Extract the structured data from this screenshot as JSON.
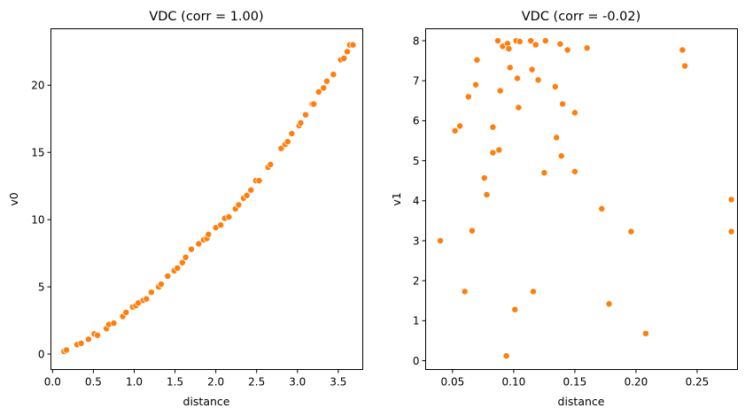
{
  "chart_data": [
    {
      "type": "scatter",
      "title": "VDC (corr = 1.00)",
      "xlabel": "distance",
      "ylabel": "v0",
      "xlim": [
        -0.02,
        3.8
      ],
      "ylim": [
        -1.15,
        24.2
      ],
      "xticks": [
        0.0,
        0.5,
        1.0,
        1.5,
        2.0,
        2.5,
        3.0,
        3.5
      ],
      "xtick_labels": [
        "0.0",
        "0.5",
        "1.0",
        "1.5",
        "2.0",
        "2.5",
        "3.0",
        "3.5"
      ],
      "yticks": [
        0,
        5,
        10,
        15,
        20
      ],
      "ytick_labels": [
        "0",
        "5",
        "10",
        "15",
        "20"
      ],
      "grid": false,
      "marker_color": "#ff7f0e",
      "x": [
        0.14,
        0.17,
        0.3,
        0.35,
        0.44,
        0.51,
        0.55,
        0.66,
        0.69,
        0.75,
        0.86,
        0.9,
        0.98,
        1.02,
        1.05,
        1.11,
        1.15,
        1.21,
        1.3,
        1.33,
        1.41,
        1.49,
        1.53,
        1.59,
        1.63,
        1.7,
        1.79,
        1.85,
        1.89,
        1.91,
        2.0,
        2.06,
        2.11,
        2.16,
        2.24,
        2.28,
        2.34,
        2.38,
        2.43,
        2.49,
        2.53,
        2.64,
        2.67,
        2.8,
        2.85,
        2.88,
        2.93,
        3.02,
        3.04,
        3.1,
        3.18,
        3.2,
        3.26,
        3.32,
        3.36,
        3.44,
        3.53,
        3.57,
        3.61,
        3.64,
        3.68
      ],
      "y": [
        0.2,
        0.3,
        0.7,
        0.8,
        1.1,
        1.5,
        1.4,
        1.9,
        2.2,
        2.3,
        2.8,
        3.1,
        3.5,
        3.6,
        3.8,
        4.0,
        4.1,
        4.6,
        5.0,
        5.2,
        5.8,
        6.2,
        6.4,
        6.8,
        7.2,
        7.8,
        8.2,
        8.5,
        8.6,
        8.9,
        9.4,
        9.6,
        10.1,
        10.2,
        10.8,
        11.1,
        11.6,
        11.8,
        12.2,
        12.9,
        12.9,
        13.9,
        14.1,
        15.3,
        15.6,
        15.8,
        16.4,
        17.0,
        17.2,
        17.8,
        18.6,
        18.6,
        19.5,
        19.8,
        20.3,
        20.8,
        21.9,
        22.0,
        22.5,
        23.0,
        23.0
      ]
    },
    {
      "type": "scatter",
      "title": "VDC (corr = -0.02)",
      "xlabel": "distance",
      "ylabel": "v1",
      "xlim": [
        0.028,
        0.283
      ],
      "ylim": [
        -0.22,
        8.3
      ],
      "xticks": [
        0.05,
        0.1,
        0.15,
        0.2,
        0.25
      ],
      "xtick_labels": [
        "0.05",
        "0.10",
        "0.15",
        "0.20",
        "0.25"
      ],
      "yticks": [
        0,
        1,
        2,
        3,
        4,
        5,
        6,
        7,
        8
      ],
      "ytick_labels": [
        "0",
        "1",
        "2",
        "3",
        "4",
        "5",
        "6",
        "7",
        "8"
      ],
      "grid": false,
      "marker_color": "#ff7f0e",
      "x": [
        0.04,
        0.052,
        0.056,
        0.06,
        0.063,
        0.066,
        0.069,
        0.07,
        0.076,
        0.078,
        0.083,
        0.083,
        0.087,
        0.088,
        0.089,
        0.091,
        0.094,
        0.095,
        0.096,
        0.097,
        0.101,
        0.102,
        0.103,
        0.104,
        0.105,
        0.114,
        0.115,
        0.116,
        0.118,
        0.12,
        0.125,
        0.126,
        0.134,
        0.135,
        0.138,
        0.139,
        0.14,
        0.144,
        0.15,
        0.15,
        0.16,
        0.172,
        0.178,
        0.196,
        0.208,
        0.238,
        0.24,
        0.278,
        0.278
      ],
      "y": [
        3.0,
        5.75,
        5.87,
        1.73,
        6.6,
        3.25,
        6.9,
        7.52,
        4.57,
        4.15,
        5.2,
        5.84,
        8.0,
        5.27,
        6.75,
        7.86,
        0.12,
        7.93,
        7.8,
        7.33,
        1.28,
        8.0,
        7.06,
        6.33,
        7.98,
        8.0,
        7.28,
        1.73,
        7.9,
        7.02,
        4.7,
        8.0,
        6.85,
        5.58,
        7.92,
        5.12,
        6.42,
        7.77,
        4.73,
        6.2,
        7.82,
        3.8,
        1.42,
        3.23,
        0.68,
        7.77,
        7.37,
        4.03,
        3.23
      ]
    }
  ]
}
